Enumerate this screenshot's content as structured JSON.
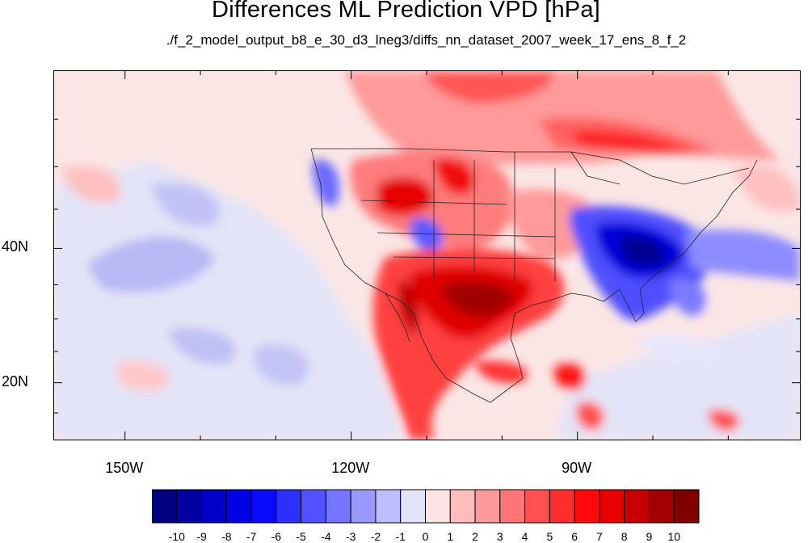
{
  "title": "Differences ML Prediction VPD [hPa]",
  "subtitle": "./f_2_model_output_b8_e_30_d3_lneg3/diffs_nn_dataset_2007_week_17_ens_8_f_2",
  "map": {
    "x_ticks": [
      {
        "lon": -150,
        "label": "150W"
      },
      {
        "lon": -120,
        "label": "120W"
      },
      {
        "lon": -90,
        "label": "90W"
      }
    ],
    "y_ticks": [
      {
        "lat": 40,
        "label": "40N"
      },
      {
        "lat": 20,
        "label": "20N"
      }
    ]
  },
  "colorbar": {
    "labels": [
      "-10",
      "-9",
      "-8",
      "-7",
      "-6",
      "-5",
      "-4",
      "-3",
      "-2",
      "-1",
      "0",
      "1",
      "2",
      "3",
      "4",
      "5",
      "6",
      "7",
      "8",
      "9",
      "10"
    ],
    "colors": [
      "#000080",
      "#0000a3",
      "#0000c6",
      "#0000e9",
      "#0a0aff",
      "#2e2eff",
      "#5151ff",
      "#7575ff",
      "#9898ff",
      "#bcbcff",
      "#e2e2fa",
      "#fde4e4",
      "#ffbcbc",
      "#ff9898",
      "#ff7575",
      "#ff5151",
      "#ff2e2e",
      "#ff0a0a",
      "#e90000",
      "#c60000",
      "#a30000",
      "#800000"
    ]
  }
}
